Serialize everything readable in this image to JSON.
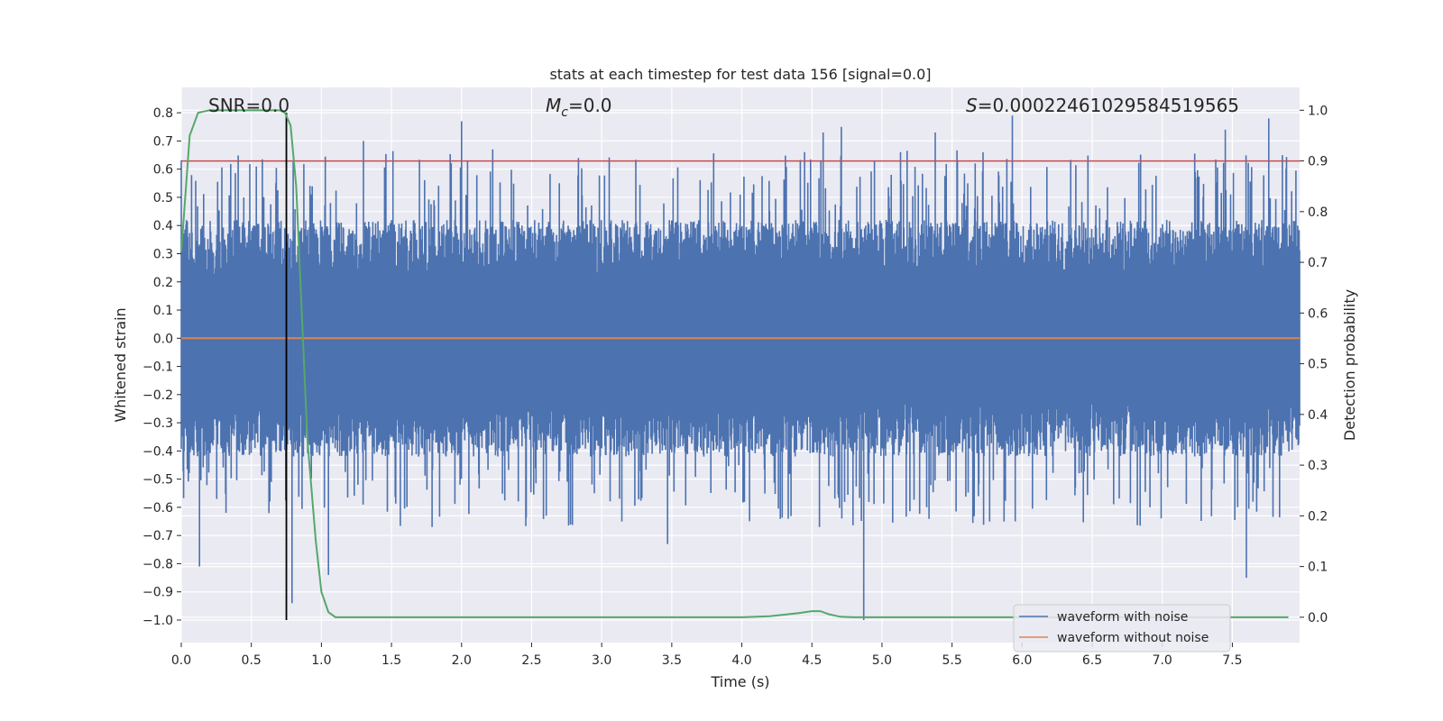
{
  "chart_data": {
    "type": "line",
    "title": "stats at each timestep for test data 156 [signal=0.0]",
    "xlabel": "Time (s)",
    "ylabel_left": "Whitened strain",
    "ylabel_right": "Detection probability",
    "xlim": [
      0.0,
      7.98
    ],
    "ylim_left": [
      -1.08,
      0.89
    ],
    "ylim_right": [
      -0.05,
      1.045
    ],
    "x_ticks": [
      "0.0",
      "0.5",
      "1.0",
      "1.5",
      "2.0",
      "2.5",
      "3.0",
      "3.5",
      "4.0",
      "4.5",
      "5.0",
      "5.5",
      "6.0",
      "6.5",
      "7.0",
      "7.5"
    ],
    "x_tick_values": [
      0.0,
      0.5,
      1.0,
      1.5,
      2.0,
      2.5,
      3.0,
      3.5,
      4.0,
      4.5,
      5.0,
      5.5,
      6.0,
      6.5,
      7.0,
      7.5
    ],
    "y_left_ticks": [
      "0.8",
      "0.7",
      "0.6",
      "0.5",
      "0.4",
      "0.3",
      "0.2",
      "0.1",
      "0.0",
      "−0.1",
      "−0.2",
      "−0.3",
      "−0.4",
      "−0.5",
      "−0.6",
      "−0.7",
      "−0.8",
      "−0.9",
      "−1.0"
    ],
    "y_left_tick_values": [
      0.8,
      0.7,
      0.6,
      0.5,
      0.4,
      0.3,
      0.2,
      0.1,
      0.0,
      -0.1,
      -0.2,
      -0.3,
      -0.4,
      -0.5,
      -0.6,
      -0.7,
      -0.8,
      -0.9,
      -1.0
    ],
    "y_right_ticks": [
      "1.0",
      "0.9",
      "0.8",
      "0.7",
      "0.6",
      "0.5",
      "0.4",
      "0.3",
      "0.2",
      "0.1",
      "0.0"
    ],
    "y_right_tick_values": [
      1.0,
      0.9,
      0.8,
      0.7,
      0.6,
      0.5,
      0.4,
      0.3,
      0.2,
      0.1,
      0.0
    ],
    "annotations": {
      "snr": "SNR=0.0",
      "mc_symbol": "M",
      "mc_sub": "c",
      "mc_value": "=0.0",
      "s_symbol": "S",
      "s_value": "=0.00022461029584519565"
    },
    "series": [
      {
        "name": "waveform with noise",
        "axis": "left",
        "color": "#4c72b0",
        "description": "whitened noise, roughly ±0.35 with spikes up to 0.79 and down to -1.0",
        "seed": 156,
        "n_points": 2400,
        "spikes": [
          {
            "x": 0.13,
            "y": -0.81
          },
          {
            "x": 0.79,
            "y": -0.94
          },
          {
            "x": 1.05,
            "y": -0.84
          },
          {
            "x": 2.0,
            "y": 0.77
          },
          {
            "x": 3.47,
            "y": -0.73
          },
          {
            "x": 4.58,
            "y": 0.73
          },
          {
            "x": 4.71,
            "y": 0.75
          },
          {
            "x": 4.87,
            "y": -1.0
          },
          {
            "x": 5.93,
            "y": 0.79
          },
          {
            "x": 7.6,
            "y": -0.85
          },
          {
            "x": 7.76,
            "y": 0.78
          },
          {
            "x": 5.38,
            "y": 0.73
          },
          {
            "x": 7.45,
            "y": 0.74
          },
          {
            "x": 1.3,
            "y": 0.7
          }
        ]
      },
      {
        "name": "waveform without noise",
        "axis": "left",
        "color": "#dd8452",
        "x": [
          0.0,
          7.98
        ],
        "y": [
          0.0,
          0.0
        ]
      },
      {
        "name": "detection probability",
        "axis": "right",
        "color": "#55a868",
        "x": [
          0.0,
          0.06,
          0.12,
          0.2,
          0.35,
          0.55,
          0.7,
          0.74,
          0.78,
          0.82,
          0.86,
          0.9,
          0.96,
          1.0,
          1.05,
          1.1,
          1.2,
          2.0,
          3.0,
          4.0,
          4.2,
          4.4,
          4.5,
          4.56,
          4.62,
          4.7,
          4.8,
          5.5,
          7.9
        ],
        "y": [
          0.72,
          0.95,
          0.995,
          1.0,
          1.0,
          1.0,
          1.0,
          0.995,
          0.97,
          0.85,
          0.6,
          0.35,
          0.15,
          0.05,
          0.01,
          0.0,
          0.0,
          0.0,
          0.0,
          0.0,
          0.002,
          0.008,
          0.012,
          0.012,
          0.006,
          0.001,
          0.0,
          0.0,
          0.0
        ]
      }
    ],
    "threshold": {
      "axis": "right",
      "value": 0.9,
      "color": "#c44e52"
    },
    "vertical_marker": {
      "x": 0.75,
      "from": -1.0,
      "to": 0.8,
      "axis": "left",
      "color": "#000000"
    },
    "legend": {
      "position": "bottom-right",
      "entries": [
        "waveform with noise",
        "waveform without noise"
      ],
      "colors": [
        "#4c72b0",
        "#dd8452"
      ]
    },
    "style": {
      "background": "#eaeaf2",
      "grid": true,
      "grid_color": "#ffffff"
    }
  }
}
